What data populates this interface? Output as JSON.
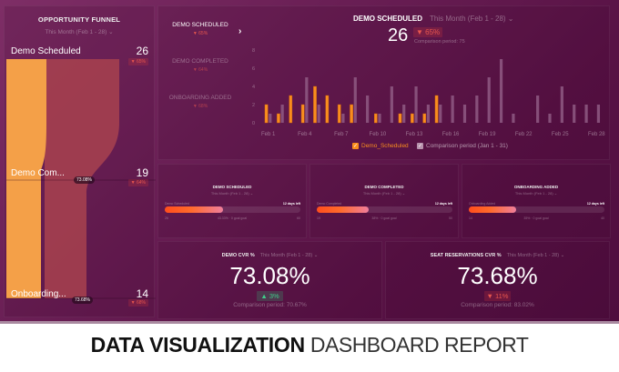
{
  "funnel": {
    "title": "OPPORTUNITY FUNNEL",
    "range": "This Month (Feb 1 - 28) ⌄",
    "stages": [
      {
        "label": "Demo Scheduled",
        "value": "26",
        "change": "▼ 65%"
      },
      {
        "label": "Demo Com...",
        "value": "19",
        "change": "▼ 64%",
        "conversion": "73.08%"
      },
      {
        "label": "Onboarding...",
        "value": "14",
        "change": "▼ 68%",
        "conversion": "73.68%"
      }
    ],
    "colors": {
      "stage1": "#f4a048",
      "stage2": "#a8424f"
    }
  },
  "main_chart": {
    "metrics": [
      {
        "label": "DEMO SCHEDULED",
        "change": "▼ 65%",
        "active": true
      },
      {
        "label": "DEMO COMPLETED",
        "change": "▼ 64%",
        "active": false
      },
      {
        "label": "ONBOARDING ADDED",
        "change": "▼ 68%",
        "active": false
      }
    ],
    "title": "DEMO SCHEDULED",
    "range": "This Month (Feb 1 - 28) ⌄",
    "value": "26",
    "change": "▼ 65%",
    "comparison": "Comparison period: 75",
    "legend": [
      "Demo_Scheduled",
      "Comparison period (Jan 1 - 31)"
    ]
  },
  "chart_data": {
    "type": "bar",
    "title": "DEMO SCHEDULED",
    "xlabel": "",
    "ylabel": "",
    "ylim": [
      0,
      8
    ],
    "yticks": [
      "0",
      "2",
      "4",
      "6",
      "8"
    ],
    "grid": false,
    "legend_position": "bottom",
    "categories": [
      "Feb 1",
      "Feb 2",
      "Feb 3",
      "Feb 4",
      "Feb 5",
      "Feb 6",
      "Feb 7",
      "Feb 8",
      "Feb 9",
      "Feb 10",
      "Feb 11",
      "Feb 12",
      "Feb 13",
      "Feb 14",
      "Feb 15",
      "Feb 16",
      "Feb 17",
      "Feb 18",
      "Feb 19",
      "Feb 20",
      "Feb 21",
      "Feb 22",
      "Feb 23",
      "Feb 24",
      "Feb 25",
      "Feb 26",
      "Feb 27",
      "Feb 28"
    ],
    "xtick_labels": [
      "Feb 1",
      "Feb 4",
      "Feb 7",
      "Feb 10",
      "Feb 13",
      "Feb 16",
      "Feb 19",
      "Feb 22",
      "Feb 25",
      "Feb 28"
    ],
    "series": [
      {
        "name": "Demo_Scheduled",
        "color": "#f98d1e",
        "values": [
          2,
          1,
          3,
          2,
          4,
          3,
          2,
          2,
          0,
          1,
          0,
          1,
          1,
          1,
          3,
          0,
          0,
          0,
          0,
          0,
          0,
          0,
          0,
          0,
          0,
          0,
          0,
          0
        ]
      },
      {
        "name": "Comparison period (Jan 1 - 31)",
        "color": "#8f5a84",
        "values": [
          1,
          2,
          0,
          5,
          2,
          0,
          1,
          5,
          3,
          1,
          4,
          2,
          4,
          2,
          2,
          3,
          2,
          3,
          5,
          7,
          1,
          0,
          3,
          1,
          4,
          2,
          2,
          2
        ]
      }
    ]
  },
  "goals": [
    {
      "title": "DEMO SCHEDULED",
      "range": "This Month (Feb 1 - 28) ⌄",
      "name": "Demo Scheduled",
      "days_left": "12 days left",
      "min": "26",
      "max": "60",
      "status": "43.33% · 0 goal goal",
      "progress": 0.43
    },
    {
      "title": "DEMO COMPLETED",
      "range": "This Month (Feb 1 - 28) ⌄",
      "name": "Demo Completed",
      "days_left": "12 days left",
      "min": "19",
      "max": "50",
      "status": "38% · 0 goal goal",
      "progress": 0.38
    },
    {
      "title": "ONBOARDING ADDED",
      "range": "This Month (Feb 1 - 28) ⌄",
      "name": "Onboarding Added",
      "days_left": "12 days left",
      "min": "14",
      "max": "40",
      "status": "35% · 0 goal goal",
      "progress": 0.35
    }
  ],
  "kpis": [
    {
      "title": "DEMO CVR %",
      "range": "This Month (Feb 1 - 28) ⌄",
      "value": "73.08%",
      "change": "▲ 3%",
      "direction": "up",
      "comparison": "Comparison period: 70.67%"
    },
    {
      "title": "SEAT RESERVATIONS CVR %",
      "range": "This Month (Feb 1 - 28) ⌄",
      "value": "73.68%",
      "change": "▼ 11%",
      "direction": "down",
      "comparison": "Comparison period: 83.02%"
    }
  ],
  "footer": {
    "bold": "DATA VISUALIZATION",
    "light": "DASHBOARD REPORT"
  }
}
